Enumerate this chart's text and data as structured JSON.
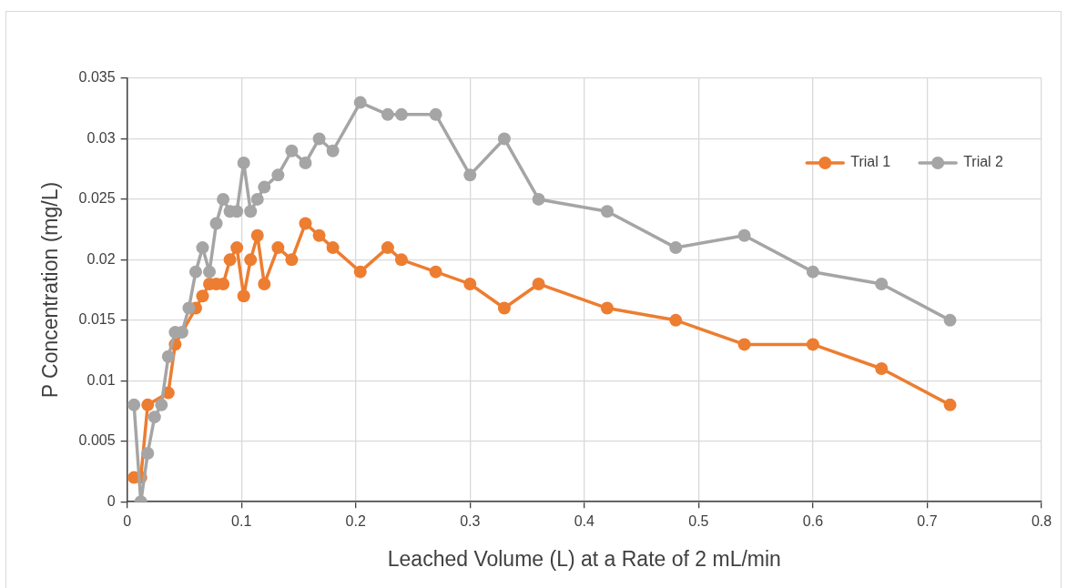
{
  "chart_data": {
    "type": "line",
    "xlabel": "Leached Volume (L) at a Rate of 2 mL/min",
    "ylabel": "P Concentration (mg/L)",
    "x": [
      0.006,
      0.012,
      0.018,
      0.024,
      0.03,
      0.036,
      0.042,
      0.048,
      0.054,
      0.06,
      0.066,
      0.072,
      0.078,
      0.084,
      0.09,
      0.096,
      0.102,
      0.108,
      0.114,
      0.12,
      0.132,
      0.144,
      0.156,
      0.168,
      0.18,
      0.204,
      0.228,
      0.24,
      0.27,
      0.3,
      0.33,
      0.36,
      0.42,
      0.48,
      0.54,
      0.6,
      0.66,
      0.72
    ],
    "series": [
      {
        "name": "Trial 1",
        "color": "#ed7d31",
        "x": [
          0.006,
          0.012,
          0.018,
          0.036,
          0.042,
          0.06,
          0.066,
          0.072,
          0.078,
          0.084,
          0.09,
          0.096,
          0.102,
          0.108,
          0.114,
          0.12,
          0.132,
          0.144,
          0.156,
          0.168,
          0.18,
          0.204,
          0.228,
          0.24,
          0.27,
          0.3,
          0.33,
          0.36,
          0.42,
          0.48,
          0.54,
          0.6,
          0.66,
          0.72
        ],
        "values": [
          0.002,
          0.002,
          0.008,
          0.009,
          0.013,
          0.016,
          0.017,
          0.018,
          0.018,
          0.018,
          0.02,
          0.021,
          0.017,
          0.02,
          0.022,
          0.018,
          0.021,
          0.02,
          0.023,
          0.022,
          0.021,
          0.019,
          0.021,
          0.02,
          0.019,
          0.018,
          0.016,
          0.018,
          0.016,
          0.015,
          0.013,
          0.013,
          0.011,
          0.008
        ]
      },
      {
        "name": "Trial 2",
        "color": "#a5a5a5",
        "values": [
          0.008,
          0,
          0.004,
          0.007,
          0.008,
          0.012,
          0.014,
          0.014,
          0.016,
          0.019,
          0.021,
          0.019,
          0.023,
          0.025,
          0.024,
          0.024,
          0.028,
          0.024,
          0.025,
          0.026,
          0.027,
          0.029,
          0.028,
          0.03,
          0.029,
          0.033,
          0.032,
          0.032,
          0.032,
          0.027,
          0.03,
          0.025,
          0.024,
          0.021,
          0.022,
          0.019,
          0.018,
          0.015
        ]
      }
    ],
    "xlim": [
      0,
      0.8
    ],
    "xticks": [
      0,
      0.1,
      0.2,
      0.3,
      0.4,
      0.5,
      0.6,
      0.7,
      0.8
    ],
    "ylim": [
      0,
      0.035
    ],
    "yticks": [
      0,
      0.005,
      0.01,
      0.015,
      0.02,
      0.025,
      0.03,
      0.035
    ],
    "grid": true,
    "legend": "top right",
    "marker": "circle",
    "line_style": "solid"
  }
}
